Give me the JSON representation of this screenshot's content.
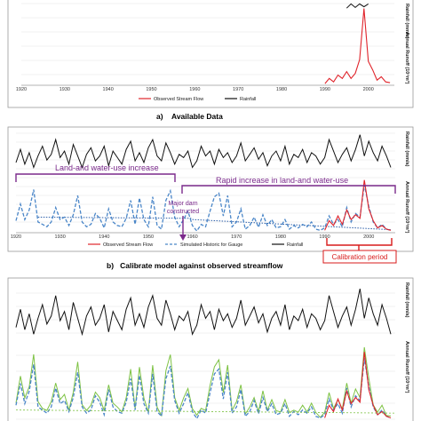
{
  "chart_data": [
    {
      "id": "a",
      "type": "line",
      "caption": "a)    Available Data",
      "xlim": [
        1920,
        2006
      ],
      "x_ticks": [
        "1920",
        "1930",
        "1940",
        "1950",
        "1960",
        "1970",
        "1980",
        "1990",
        "2000"
      ],
      "ylabel_top": "Rainfall (mm/a)",
      "ylabel_bottom": "Annual Runoff (10⁶m³)",
      "legend": [
        {
          "name": "Observed Stream Flow",
          "color": "#e0242b",
          "dash": "solid"
        },
        {
          "name": "Rainfall",
          "color": "#111111",
          "dash": "solid"
        }
      ],
      "series": [
        {
          "name": "Observed Stream Flow",
          "color": "#e0242b",
          "x": [
            1990,
            1991,
            1992,
            1993,
            1994,
            1995,
            1996,
            1997,
            1998,
            1999,
            2000,
            2001,
            2002,
            2003,
            2004,
            2005
          ],
          "y": [
            2,
            8,
            4,
            12,
            8,
            16,
            8,
            14,
            30,
            90,
            28,
            18,
            6,
            10,
            4,
            3
          ]
        }
      ]
    },
    {
      "id": "b",
      "type": "line",
      "caption": "b)   Calibrate model against observed streamflow",
      "xlim": [
        1920,
        2006
      ],
      "x_ticks": [
        "1920",
        "1930",
        "1940",
        "1950",
        "1960",
        "1970",
        "1980",
        "1990",
        "2000"
      ],
      "ylabel_top": "Rainfall (mm/a)",
      "ylabel_bottom": "Annual Runoff (10⁶m³)",
      "legend": [
        {
          "name": "Observed Stream Flow",
          "color": "#e0242b",
          "dash": "solid"
        },
        {
          "name": "Simulated Historic for Gauge",
          "color": "#4a86c8",
          "dash": "dashed"
        },
        {
          "name": "Rainfall",
          "color": "#111111",
          "dash": "solid"
        }
      ],
      "annotations": {
        "land_water_use": "Land-and water-use increase",
        "rapid_increase": "Rapid  increase  in  land-and  water-use",
        "major_dam": [
          "Major dam",
          "constructed"
        ],
        "calibration_period": "Calibration period"
      },
      "rainfall": {
        "x": [
          1920,
          1921,
          1922,
          1923,
          1924,
          1925,
          1926,
          1927,
          1928,
          1929,
          1930,
          1931,
          1932,
          1933,
          1934,
          1935,
          1936,
          1937,
          1938,
          1939,
          1940,
          1941,
          1942,
          1943,
          1944,
          1945,
          1946,
          1947,
          1948,
          1949,
          1950,
          1951,
          1952,
          1953,
          1954,
          1955,
          1956,
          1957,
          1958,
          1959,
          1960,
          1961,
          1962,
          1963,
          1964,
          1965,
          1966,
          1967,
          1968,
          1969,
          1970,
          1971,
          1972,
          1973,
          1974,
          1975,
          1976,
          1977,
          1978,
          1979,
          1980,
          1981,
          1982,
          1983,
          1984,
          1985,
          1986,
          1987,
          1988,
          1989,
          1990,
          1991,
          1992,
          1993,
          1994,
          1995,
          1996,
          1997,
          1998,
          1999,
          2000,
          2001,
          2002,
          2003,
          2004,
          2005
        ],
        "y": [
          620,
          780,
          600,
          740,
          560,
          700,
          820,
          650,
          720,
          900,
          680,
          760,
          600,
          840,
          700,
          560,
          720,
          800,
          640,
          700,
          820,
          580,
          760,
          680,
          600,
          780,
          880,
          640,
          740,
          620,
          800,
          900,
          700,
          640,
          860,
          740,
          600,
          720,
          680,
          760,
          560,
          640,
          820,
          700,
          760,
          600,
          780,
          680,
          740,
          620,
          700,
          860,
          640,
          720,
          800,
          660,
          740,
          580,
          700,
          760,
          640,
          820,
          600,
          720,
          680,
          780,
          620,
          740,
          700,
          600,
          680,
          900,
          760,
          620,
          720,
          800,
          640,
          780,
          960,
          700,
          880,
          740,
          640,
          820,
          700,
          560
        ]
      },
      "simulated": {
        "x": [
          1920,
          1921,
          1922,
          1923,
          1924,
          1925,
          1926,
          1927,
          1928,
          1929,
          1930,
          1931,
          1932,
          1933,
          1934,
          1935,
          1936,
          1937,
          1938,
          1939,
          1940,
          1941,
          1942,
          1943,
          1944,
          1945,
          1946,
          1947,
          1948,
          1949,
          1950,
          1951,
          1952,
          1953,
          1954,
          1955,
          1956,
          1957,
          1958,
          1959,
          1960,
          1961,
          1962,
          1963,
          1964,
          1965,
          1966,
          1967,
          1968,
          1969,
          1970,
          1971,
          1972,
          1973,
          1974,
          1975,
          1976,
          1977,
          1978,
          1979,
          1980,
          1981,
          1982,
          1983,
          1984,
          1985,
          1986,
          1987,
          1988,
          1989,
          1990,
          1991,
          1992,
          1993,
          1994,
          1995,
          1996,
          1997,
          1998,
          1999,
          2000,
          2001,
          2002,
          2003,
          2004,
          2005
        ],
        "y": [
          20,
          48,
          22,
          38,
          72,
          18,
          14,
          10,
          18,
          42,
          22,
          26,
          12,
          30,
          62,
          18,
          10,
          14,
          32,
          24,
          8,
          40,
          18,
          12,
          10,
          24,
          54,
          14,
          58,
          22,
          10,
          60,
          12,
          6,
          54,
          70,
          26,
          10,
          22,
          36,
          12,
          3,
          14,
          10,
          36,
          60,
          66,
          28,
          62,
          10,
          18,
          40,
          6,
          12,
          26,
          9,
          30,
          12,
          22,
          8,
          10,
          22,
          6,
          12,
          8,
          14,
          10,
          18,
          6,
          4,
          8,
          28,
          14,
          22,
          10,
          42,
          18,
          32,
          26,
          80,
          44,
          18,
          8,
          14,
          6,
          4
        ]
      },
      "observed": {
        "x": [
          1990,
          1991,
          1992,
          1993,
          1994,
          1995,
          1996,
          1997,
          1998,
          1999,
          2000,
          2001,
          2002,
          2003,
          2004,
          2005
        ],
        "y": [
          4,
          20,
          12,
          28,
          14,
          38,
          22,
          30,
          24,
          88,
          40,
          20,
          8,
          12,
          6,
          4
        ]
      },
      "trend_pre_dam": {
        "x": [
          1925,
          1960
        ],
        "y": [
          26,
          24
        ]
      },
      "trend_post_dam": {
        "x": [
          1960,
          2005
        ],
        "y": [
          22,
          5
        ]
      }
    },
    {
      "id": "c",
      "type": "line",
      "caption": "",
      "xlim": [
        1920,
        2006
      ],
      "ylabel_top": "Rainfall (mm/a)",
      "ylabel_bottom": "Annual Runoff (10⁶m³)",
      "series_colors": [
        "#111111",
        "#4a86c8",
        "#7dc243",
        "#e0242b"
      ]
    }
  ]
}
